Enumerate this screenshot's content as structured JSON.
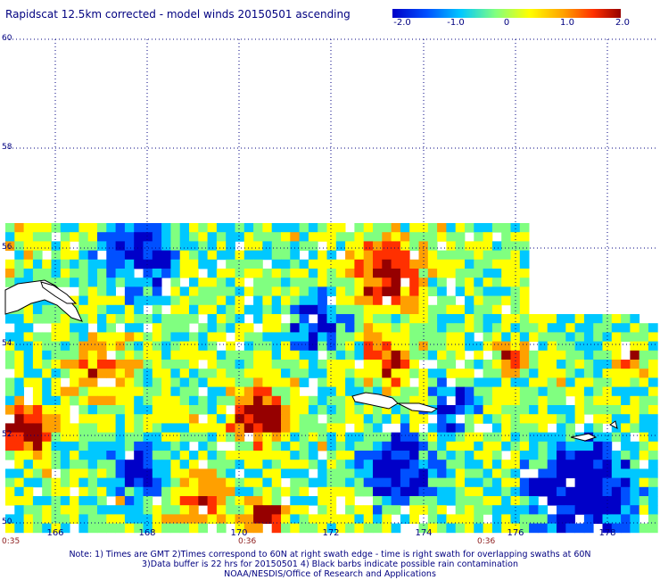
{
  "title": "Rapidscat 12.5km corrected - model winds 20150501 ascending",
  "colorbar": {
    "labels": [
      "-2.0",
      "-1.0",
      "0",
      "1.0",
      "2.0"
    ],
    "range": [
      -2.0,
      2.0
    ],
    "colors": [
      "#0000c8",
      "#0050ff",
      "#00c8ff",
      "#80ff80",
      "#ffff00",
      "#ffa000",
      "#ff3000",
      "#960000"
    ]
  },
  "map": {
    "lat_labels": [
      "60",
      "58",
      "56",
      "54",
      "52",
      "50"
    ],
    "lon_labels": [
      "166",
      "168",
      "170",
      "172",
      "174",
      "176",
      "178"
    ],
    "time_labels": [
      "0:35",
      "0:36",
      "0:36"
    ],
    "grid": "dotted",
    "background": "#ffffff",
    "coastline_color": "#000000",
    "grid_color": "#000080"
  },
  "notes": {
    "line1": "Note: 1) Times are GMT 2)Times correspond to 60N at right swath edge - time is right swath for overlapping swaths at 60N",
    "line2": "3)Data buffer is 22 hrs for 20150501 4) Black barbs indicate possible rain contamination",
    "line3": "NOAA/NESDIS/Office of Research and Applications"
  }
}
